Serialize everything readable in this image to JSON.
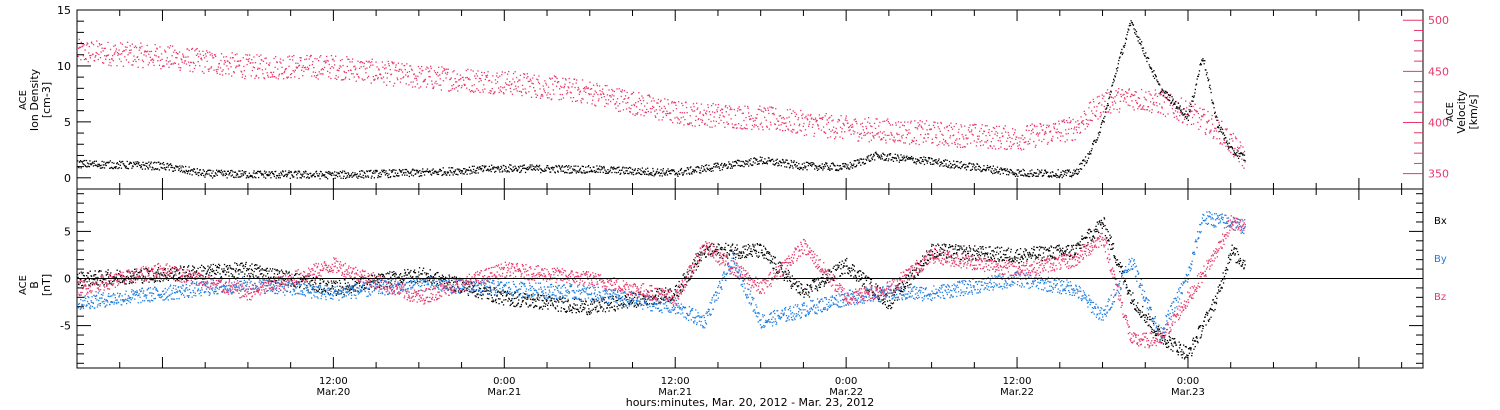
{
  "colors": {
    "black": "#000000",
    "pink": "#e8386b",
    "blue": "#1f7fe0"
  },
  "xaxis": {
    "range": [
      "2012-03-19T18:00",
      "2012-03-23T16:30"
    ],
    "title": "hours:minutes, Mar. 20, 2012 - Mar. 23, 2012",
    "ticks": [
      {
        "time": "2012-03-20T12:00",
        "hhmm": "12:00",
        "date": "Mar.20"
      },
      {
        "time": "2012-03-21T00:00",
        "hhmm": "0:00",
        "date": "Mar.21"
      },
      {
        "time": "2012-03-21T12:00",
        "hhmm": "12:00",
        "date": "Mar.21"
      },
      {
        "time": "2012-03-22T00:00",
        "hhmm": "0:00",
        "date": "Mar.22"
      },
      {
        "time": "2012-03-22T12:00",
        "hhmm": "12:00",
        "date": "Mar.22"
      },
      {
        "time": "2012-03-23T00:00",
        "hhmm": "0:00",
        "date": "Mar.23"
      }
    ]
  },
  "chart_data": [
    {
      "type": "scatter",
      "panel": "top",
      "ylabel_left": [
        "ACE",
        "Ion Density",
        "[cm-3]"
      ],
      "ylabel_right": [
        "ACE",
        "Velocity",
        "[km/s]"
      ],
      "ylim_left": [
        -1,
        15
      ],
      "ylim_right": [
        335,
        510
      ],
      "yticks_left": [
        0,
        5,
        10,
        15
      ],
      "yticks_right": [
        350,
        400,
        450,
        500
      ],
      "series": [
        {
          "axis": "left",
          "color": "black",
          "points": [
            [
              "2012-03-19T18:00",
              1.3
            ],
            [
              "2012-03-20T00:00",
              1.1
            ],
            [
              "2012-03-20T03:00",
              0.4
            ],
            [
              "2012-03-20T12:00",
              0.3
            ],
            [
              "2012-03-20T18:00",
              0.5
            ],
            [
              "2012-03-21T00:00",
              0.9
            ],
            [
              "2012-03-21T06:00",
              0.8
            ],
            [
              "2012-03-21T12:00",
              0.5
            ],
            [
              "2012-03-21T18:00",
              1.6
            ],
            [
              "2012-03-21T21:00",
              1.1
            ],
            [
              "2012-03-22T00:00",
              1.0
            ],
            [
              "2012-03-22T02:00",
              2.0
            ],
            [
              "2012-03-22T06:00",
              1.5
            ],
            [
              "2012-03-22T12:00",
              0.5
            ],
            [
              "2012-03-22T16:00",
              0.4
            ],
            [
              "2012-03-22T17:00",
              2.0
            ],
            [
              "2012-03-22T18:00",
              5.0
            ],
            [
              "2012-03-22T19:00",
              10.0
            ],
            [
              "2012-03-22T20:00",
              14.0
            ],
            [
              "2012-03-22T21:00",
              11.0
            ],
            [
              "2012-03-22T22:00",
              8.0
            ],
            [
              "2012-03-23T00:00",
              5.5
            ],
            [
              "2012-03-23T01:00",
              11.0
            ],
            [
              "2012-03-23T02:00",
              5.0
            ],
            [
              "2012-03-23T03:00",
              2.5
            ],
            [
              "2012-03-23T04:00",
              1.8
            ]
          ]
        },
        {
          "axis": "right",
          "color": "pink",
          "points": [
            [
              "2012-03-19T18:00",
              470
            ],
            [
              "2012-03-20T00:00",
              465
            ],
            [
              "2012-03-20T06:00",
              455
            ],
            [
              "2012-03-20T12:00",
              455
            ],
            [
              "2012-03-20T18:00",
              445
            ],
            [
              "2012-03-21T00:00",
              440
            ],
            [
              "2012-03-21T06:00",
              430
            ],
            [
              "2012-03-21T12:00",
              410
            ],
            [
              "2012-03-21T18:00",
              405
            ],
            [
              "2012-03-22T00:00",
              395
            ],
            [
              "2012-03-22T06:00",
              390
            ],
            [
              "2012-03-22T12:00",
              385
            ],
            [
              "2012-03-22T16:00",
              395
            ],
            [
              "2012-03-22T18:00",
              420
            ],
            [
              "2012-03-22T20:00",
              425
            ],
            [
              "2012-03-22T22:00",
              420
            ],
            [
              "2012-03-23T00:00",
              410
            ],
            [
              "2012-03-23T02:00",
              395
            ],
            [
              "2012-03-23T04:00",
              365
            ]
          ]
        }
      ]
    },
    {
      "type": "scatter",
      "panel": "bottom",
      "ylabel_left": [
        "ACE",
        "B",
        "[nT]"
      ],
      "ylim": [
        -9.5,
        9.5
      ],
      "yticks": [
        -5,
        0,
        5
      ],
      "legend": [
        "Bx",
        "By",
        "Bz"
      ],
      "series": [
        {
          "name": "Bx",
          "color": "black",
          "points": [
            [
              "2012-03-19T18:00",
              0.0
            ],
            [
              "2012-03-20T00:00",
              0.5
            ],
            [
              "2012-03-20T06:00",
              1.0
            ],
            [
              "2012-03-20T12:00",
              -1.0
            ],
            [
              "2012-03-20T18:00",
              0.5
            ],
            [
              "2012-03-21T00:00",
              -2.0
            ],
            [
              "2012-03-21T06:00",
              -3.0
            ],
            [
              "2012-03-21T12:00",
              -1.5
            ],
            [
              "2012-03-21T14:00",
              3.0
            ],
            [
              "2012-03-21T18:00",
              3.0
            ],
            [
              "2012-03-21T21:00",
              -1.5
            ],
            [
              "2012-03-22T00:00",
              1.5
            ],
            [
              "2012-03-22T03:00",
              -2.5
            ],
            [
              "2012-03-22T06:00",
              3.0
            ],
            [
              "2012-03-22T12:00",
              2.5
            ],
            [
              "2012-03-22T16:00",
              3.0
            ],
            [
              "2012-03-22T18:00",
              6.0
            ],
            [
              "2012-03-22T20:00",
              -2.0
            ],
            [
              "2012-03-22T22:00",
              -6.0
            ],
            [
              "2012-03-23T00:00",
              -8.0
            ],
            [
              "2012-03-23T02:00",
              -2.0
            ],
            [
              "2012-03-23T03:00",
              3.0
            ],
            [
              "2012-03-23T04:00",
              1.5
            ]
          ]
        },
        {
          "name": "By",
          "color": "blue",
          "points": [
            [
              "2012-03-19T18:00",
              -2.5
            ],
            [
              "2012-03-20T00:00",
              -1.5
            ],
            [
              "2012-03-20T06:00",
              -0.5
            ],
            [
              "2012-03-20T12:00",
              -1.5
            ],
            [
              "2012-03-20T18:00",
              -0.5
            ],
            [
              "2012-03-21T00:00",
              -1.0
            ],
            [
              "2012-03-21T06:00",
              -1.5
            ],
            [
              "2012-03-21T12:00",
              -3.0
            ],
            [
              "2012-03-21T14:00",
              -4.5
            ],
            [
              "2012-03-21T16:00",
              2.0
            ],
            [
              "2012-03-21T18:00",
              -4.5
            ],
            [
              "2012-03-22T00:00",
              -2.0
            ],
            [
              "2012-03-22T03:00",
              -1.5
            ],
            [
              "2012-03-22T06:00",
              -1.5
            ],
            [
              "2012-03-22T12:00",
              0.0
            ],
            [
              "2012-03-22T16:00",
              -1.0
            ],
            [
              "2012-03-22T18:00",
              -4.0
            ],
            [
              "2012-03-22T20:00",
              2.0
            ],
            [
              "2012-03-22T22:00",
              -6.0
            ],
            [
              "2012-03-23T00:00",
              0.5
            ],
            [
              "2012-03-23T01:00",
              6.5
            ],
            [
              "2012-03-23T03:00",
              6.0
            ],
            [
              "2012-03-23T04:00",
              5.5
            ]
          ]
        },
        {
          "name": "Bz",
          "color": "pink",
          "points": [
            [
              "2012-03-19T18:00",
              -1.0
            ],
            [
              "2012-03-20T00:00",
              1.0
            ],
            [
              "2012-03-20T06:00",
              -1.5
            ],
            [
              "2012-03-20T12:00",
              1.5
            ],
            [
              "2012-03-20T18:00",
              -2.0
            ],
            [
              "2012-03-21T00:00",
              1.0
            ],
            [
              "2012-03-21T06:00",
              0.0
            ],
            [
              "2012-03-21T12:00",
              -2.0
            ],
            [
              "2012-03-21T14:00",
              3.5
            ],
            [
              "2012-03-21T18:00",
              -1.0
            ],
            [
              "2012-03-21T21:00",
              3.5
            ],
            [
              "2012-03-22T00:00",
              -2.0
            ],
            [
              "2012-03-22T03:00",
              -1.0
            ],
            [
              "2012-03-22T06:00",
              2.5
            ],
            [
              "2012-03-22T12:00",
              1.0
            ],
            [
              "2012-03-22T16:00",
              2.0
            ],
            [
              "2012-03-22T18:00",
              4.5
            ],
            [
              "2012-03-22T20:00",
              -6.5
            ],
            [
              "2012-03-22T22:00",
              -6.5
            ],
            [
              "2012-03-23T00:00",
              -2.0
            ],
            [
              "2012-03-23T02:00",
              3.0
            ],
            [
              "2012-03-23T03:00",
              6.0
            ],
            [
              "2012-03-23T04:00",
              5.5
            ]
          ]
        }
      ]
    }
  ]
}
